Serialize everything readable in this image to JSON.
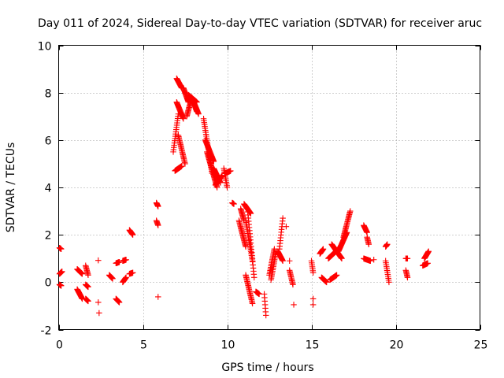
{
  "chart_data": {
    "type": "scatter",
    "title": "Day 011 of 2024, Sidereal Day-to-day VTEC variation (SDTVAR) for receiver aruc",
    "xlabel": "GPS time / hours",
    "ylabel": "SDTVAR / TECUs",
    "xlim": [
      0,
      25
    ],
    "ylim": [
      -2,
      10
    ],
    "x_ticks": [
      0,
      5,
      10,
      15,
      20,
      25
    ],
    "y_ticks": [
      -2,
      0,
      2,
      4,
      6,
      8,
      10
    ],
    "grid": true,
    "marker": "plus",
    "color": "#ff0000",
    "series": [
      {
        "name": "SDTVAR",
        "segments": [
          {
            "t0": 0.05,
            "v0": 1.45,
            "t1": 0.15,
            "v1": 1.4
          },
          {
            "t0": 0.05,
            "v0": 0.35,
            "t1": 0.2,
            "v1": 0.45
          },
          {
            "t0": 0.05,
            "v0": -0.1,
            "t1": 0.15,
            "v1": -0.15
          },
          {
            "t0": 1.1,
            "v0": 0.55,
            "t1": 1.4,
            "v1": 0.35
          },
          {
            "t0": 1.1,
            "v0": -0.3,
            "t1": 1.4,
            "v1": -0.7
          },
          {
            "t0": 1.6,
            "v0": 0.7,
            "t1": 1.75,
            "v1": 0.3
          },
          {
            "t0": 1.6,
            "v0": -0.1,
            "t1": 1.75,
            "v1": -0.2
          },
          {
            "t0": 1.6,
            "v0": -0.7,
            "t1": 1.75,
            "v1": -0.8
          },
          {
            "t0": 3.0,
            "v0": 0.3,
            "t1": 3.2,
            "v1": 0.15
          },
          {
            "t0": 3.4,
            "v0": 0.8,
            "t1": 3.6,
            "v1": 0.85
          },
          {
            "t0": 3.4,
            "v0": -0.7,
            "t1": 3.6,
            "v1": -0.85
          },
          {
            "t0": 3.8,
            "v0": 0.9,
            "t1": 4.0,
            "v1": 0.95
          },
          {
            "t0": 3.8,
            "v0": 0.0,
            "t1": 4.0,
            "v1": 0.2
          },
          {
            "t0": 4.2,
            "v0": 2.2,
            "t1": 4.4,
            "v1": 2.0
          },
          {
            "t0": 4.2,
            "v0": 0.35,
            "t1": 4.4,
            "v1": 0.4
          },
          {
            "t0": 5.8,
            "v0": 3.35,
            "t1": 5.9,
            "v1": 3.2
          },
          {
            "t0": 5.8,
            "v0": 2.6,
            "t1": 5.9,
            "v1": 2.4
          },
          {
            "t0": 6.8,
            "v0": 5.5,
            "t1": 7.1,
            "v1": 7.1
          },
          {
            "t0": 6.9,
            "v0": 4.7,
            "t1": 7.3,
            "v1": 4.9
          },
          {
            "t0": 7.0,
            "v0": 8.6,
            "t1": 7.3,
            "v1": 8.2
          },
          {
            "t0": 7.0,
            "v0": 7.6,
            "t1": 7.4,
            "v1": 6.9
          },
          {
            "t0": 7.1,
            "v0": 6.2,
            "t1": 7.5,
            "v1": 5.0
          },
          {
            "t0": 7.4,
            "v0": 8.2,
            "t1": 7.7,
            "v1": 7.6
          },
          {
            "t0": 7.6,
            "v0": 7.0,
            "t1": 7.9,
            "v1": 7.8
          },
          {
            "t0": 7.7,
            "v0": 7.9,
            "t1": 8.2,
            "v1": 7.6
          },
          {
            "t0": 7.9,
            "v0": 7.8,
            "t1": 8.3,
            "v1": 7.1
          },
          {
            "t0": 8.0,
            "v0": 7.6,
            "t1": 8.2,
            "v1": 7.2
          },
          {
            "t0": 8.6,
            "v0": 6.9,
            "t1": 9.1,
            "v1": 4.6
          },
          {
            "t0": 8.7,
            "v0": 6.0,
            "t1": 9.2,
            "v1": 5.1
          },
          {
            "t0": 8.8,
            "v0": 5.5,
            "t1": 9.4,
            "v1": 4.0
          },
          {
            "t0": 9.2,
            "v0": 4.8,
            "t1": 9.6,
            "v1": 4.2
          },
          {
            "t0": 9.3,
            "v0": 4.1,
            "t1": 9.7,
            "v1": 4.5
          },
          {
            "t0": 9.8,
            "v0": 4.8,
            "t1": 10.0,
            "v1": 4.0
          },
          {
            "t0": 9.9,
            "v0": 4.6,
            "t1": 10.2,
            "v1": 4.7
          },
          {
            "t0": 10.3,
            "v0": 3.35,
            "t1": 10.4,
            "v1": 3.3
          },
          {
            "t0": 10.7,
            "v0": 2.6,
            "t1": 11.1,
            "v1": 1.5
          },
          {
            "t0": 10.8,
            "v0": 3.1,
            "t1": 11.0,
            "v1": 2.6
          },
          {
            "t0": 11.0,
            "v0": 3.3,
            "t1": 11.4,
            "v1": 2.9
          },
          {
            "t0": 11.1,
            "v0": 2.6,
            "t1": 11.5,
            "v1": 0.9
          },
          {
            "t0": 11.2,
            "v0": 3.1,
            "t1": 11.6,
            "v1": 0.2
          },
          {
            "t0": 11.1,
            "v0": 0.3,
            "t1": 11.5,
            "v1": -0.9
          },
          {
            "t0": 11.7,
            "v0": -0.4,
            "t1": 11.9,
            "v1": -0.5
          },
          {
            "t0": 12.2,
            "v0": -0.5,
            "t1": 12.3,
            "v1": -1.4
          },
          {
            "t0": 12.5,
            "v0": 0.3,
            "t1": 12.8,
            "v1": 1.4
          },
          {
            "t0": 12.6,
            "v0": 0.1,
            "t1": 12.9,
            "v1": 1.3
          },
          {
            "t0": 13.1,
            "v0": 1.4,
            "t1": 13.3,
            "v1": 2.7
          },
          {
            "t0": 13.0,
            "v0": 1.3,
            "t1": 13.3,
            "v1": 0.9
          },
          {
            "t0": 13.7,
            "v0": 0.5,
            "t1": 13.9,
            "v1": -0.1
          },
          {
            "t0": 15.0,
            "v0": 0.9,
            "t1": 15.1,
            "v1": 0.4
          },
          {
            "t0": 15.5,
            "v0": 1.2,
            "t1": 15.7,
            "v1": 1.4
          },
          {
            "t0": 15.6,
            "v0": 0.2,
            "t1": 15.9,
            "v1": 0.0
          },
          {
            "t0": 16.0,
            "v0": 1.0,
            "t1": 16.6,
            "v1": 1.4
          },
          {
            "t0": 16.1,
            "v0": 0.1,
            "t1": 16.5,
            "v1": 0.3
          },
          {
            "t0": 16.2,
            "v0": 1.6,
            "t1": 16.8,
            "v1": 1.0
          },
          {
            "t0": 16.6,
            "v0": 1.3,
            "t1": 17.1,
            "v1": 2.1
          },
          {
            "t0": 16.9,
            "v0": 1.9,
            "t1": 17.3,
            "v1": 3.0
          },
          {
            "t0": 18.1,
            "v0": 2.4,
            "t1": 18.3,
            "v1": 2.1
          },
          {
            "t0": 18.3,
            "v0": 1.9,
            "t1": 18.4,
            "v1": 1.6
          },
          {
            "t0": 18.1,
            "v0": 1.0,
            "t1": 18.5,
            "v1": 0.9
          },
          {
            "t0": 19.4,
            "v0": 1.5,
            "t1": 19.5,
            "v1": 1.6
          },
          {
            "t0": 19.4,
            "v0": 0.9,
            "t1": 19.6,
            "v1": 0.0
          },
          {
            "t0": 20.6,
            "v0": 1.0,
            "t1": 20.7,
            "v1": 1.0
          },
          {
            "t0": 20.6,
            "v0": 0.5,
            "t1": 20.7,
            "v1": 0.2
          },
          {
            "t0": 21.6,
            "v0": 0.7,
            "t1": 21.9,
            "v1": 0.8
          },
          {
            "t0": 21.7,
            "v0": 1.0,
            "t1": 21.95,
            "v1": 1.3
          }
        ],
        "points": [
          {
            "x": 2.35,
            "y": 0.92
          },
          {
            "x": 2.35,
            "y": -0.85
          },
          {
            "x": 2.4,
            "y": -1.3
          },
          {
            "x": 5.9,
            "y": -0.62
          },
          {
            "x": 13.5,
            "y": 2.35
          },
          {
            "x": 13.7,
            "y": 0.9
          },
          {
            "x": 13.95,
            "y": -0.95
          },
          {
            "x": 15.1,
            "y": -0.95
          },
          {
            "x": 15.1,
            "y": -0.7
          },
          {
            "x": 18.7,
            "y": 0.95
          }
        ]
      }
    ]
  }
}
